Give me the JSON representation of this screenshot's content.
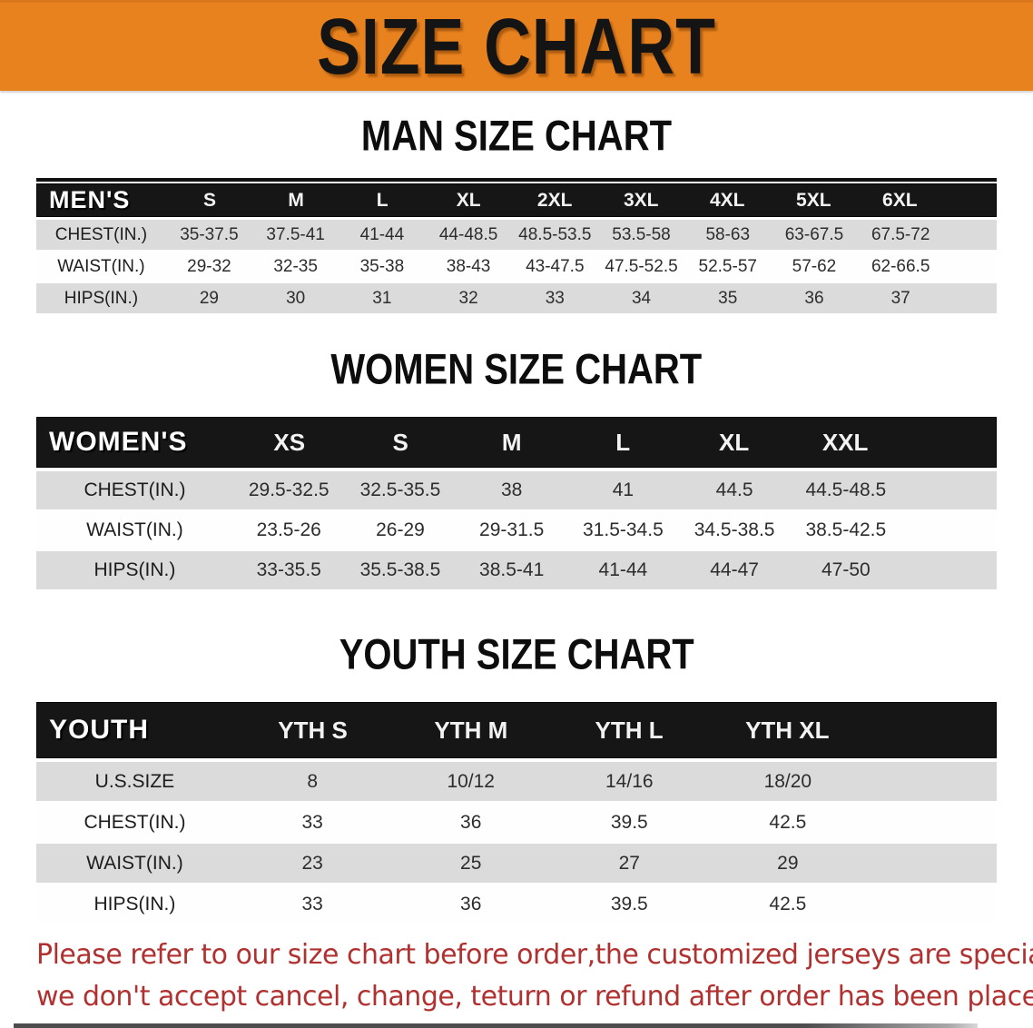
{
  "banner": {
    "title": "SIZE CHART"
  },
  "colors": {
    "banner_orange": "#E8821E",
    "header_black": "#161616",
    "row_gray": "#DBDBDB",
    "footer_red": "#B03130"
  },
  "sections": [
    {
      "heading": "MAN SIZE CHART",
      "table": {
        "label": "MEN'S",
        "columns": [
          "S",
          "M",
          "L",
          "XL",
          "2XL",
          "3XL",
          "4XL",
          "5XL",
          "6XL"
        ],
        "rows": [
          {
            "label": "CHEST(IN.)",
            "values": [
              "35-37.5",
              "37.5-41",
              "41-44",
              "44-48.5",
              "48.5-53.5",
              "53.5-58",
              "58-63",
              "63-67.5",
              "67.5-72"
            ]
          },
          {
            "label": "WAIST(IN.)",
            "values": [
              "29-32",
              "32-35",
              "35-38",
              "38-43",
              "43-47.5",
              "47.5-52.5",
              "52.5-57",
              "57-62",
              "62-66.5"
            ]
          },
          {
            "label": "HIPS(IN.)",
            "values": [
              "29",
              "30",
              "31",
              "32",
              "33",
              "34",
              "35",
              "36",
              "37"
            ]
          }
        ]
      }
    },
    {
      "heading": "WOMEN SIZE CHART",
      "table": {
        "label": "WOMEN'S",
        "columns": [
          "XS",
          "S",
          "M",
          "L",
          "XL",
          "XXL"
        ],
        "rows": [
          {
            "label": "CHEST(IN.)",
            "values": [
              "29.5-32.5",
              "32.5-35.5",
              "38",
              "41",
              "44.5",
              "44.5-48.5"
            ]
          },
          {
            "label": "WAIST(IN.)",
            "values": [
              "23.5-26",
              "26-29",
              "29-31.5",
              "31.5-34.5",
              "34.5-38.5",
              "38.5-42.5"
            ]
          },
          {
            "label": "HIPS(IN.)",
            "values": [
              "33-35.5",
              "35.5-38.5",
              "38.5-41",
              "41-44",
              "44-47",
              "47-50"
            ]
          }
        ]
      }
    },
    {
      "heading": "YOUTH SIZE CHART",
      "table": {
        "label": "YOUTH",
        "columns": [
          "YTH S",
          "YTH M",
          "YTH L",
          "YTH XL"
        ],
        "rows": [
          {
            "label": "U.S.SIZE",
            "values": [
              "8",
              "10/12",
              "14/16",
              "18/20"
            ]
          },
          {
            "label": "CHEST(IN.)",
            "values": [
              "33",
              "36",
              "39.5",
              "42.5"
            ]
          },
          {
            "label": "WAIST(IN.)",
            "values": [
              "23",
              "25",
              "27",
              "29"
            ]
          },
          {
            "label": "HIPS(IN.)",
            "values": [
              "33",
              "36",
              "39.5",
              "42.5"
            ]
          }
        ]
      }
    }
  ],
  "footer": {
    "line1": "Please refer to our size chart before order,the customized jerseys are special products,",
    "line2": "we don't accept cancel, change, teturn or refund after order has been placed!"
  }
}
